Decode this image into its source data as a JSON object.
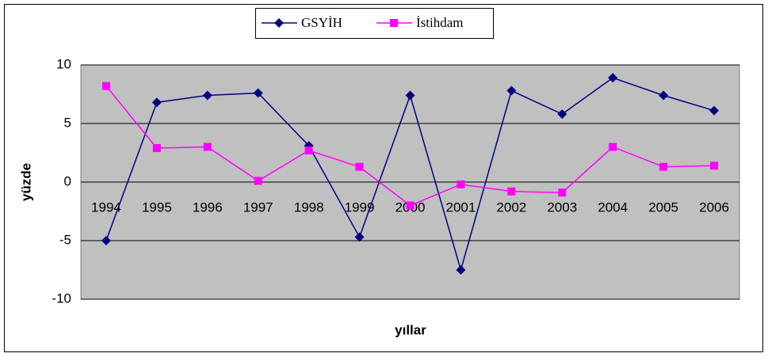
{
  "chart_data": {
    "type": "line",
    "x_label": "yıllar",
    "y_label": "yüzde",
    "categories": [
      "1994",
      "1995",
      "1996",
      "1997",
      "1998",
      "1999",
      "2000",
      "2001",
      "2002",
      "2003",
      "2004",
      "2005",
      "2006"
    ],
    "series": [
      {
        "name": "GSYİH",
        "color": "#000080",
        "marker": "diamond",
        "values": [
          -5,
          6.8,
          7.4,
          7.6,
          3.1,
          -4.7,
          7.4,
          -7.5,
          7.8,
          5.8,
          8.9,
          7.4,
          6.1
        ]
      },
      {
        "name": "İstihdam",
        "color": "#ff00ff",
        "marker": "square",
        "values": [
          8.2,
          2.9,
          3.0,
          0.1,
          2.7,
          1.3,
          -2.0,
          -0.2,
          -0.8,
          -0.9,
          3.0,
          1.3,
          1.4
        ]
      }
    ],
    "ylim": [
      -10,
      10
    ],
    "yticks": [
      -10,
      -5,
      0,
      5,
      10
    ],
    "grid": true,
    "legend": "top"
  }
}
